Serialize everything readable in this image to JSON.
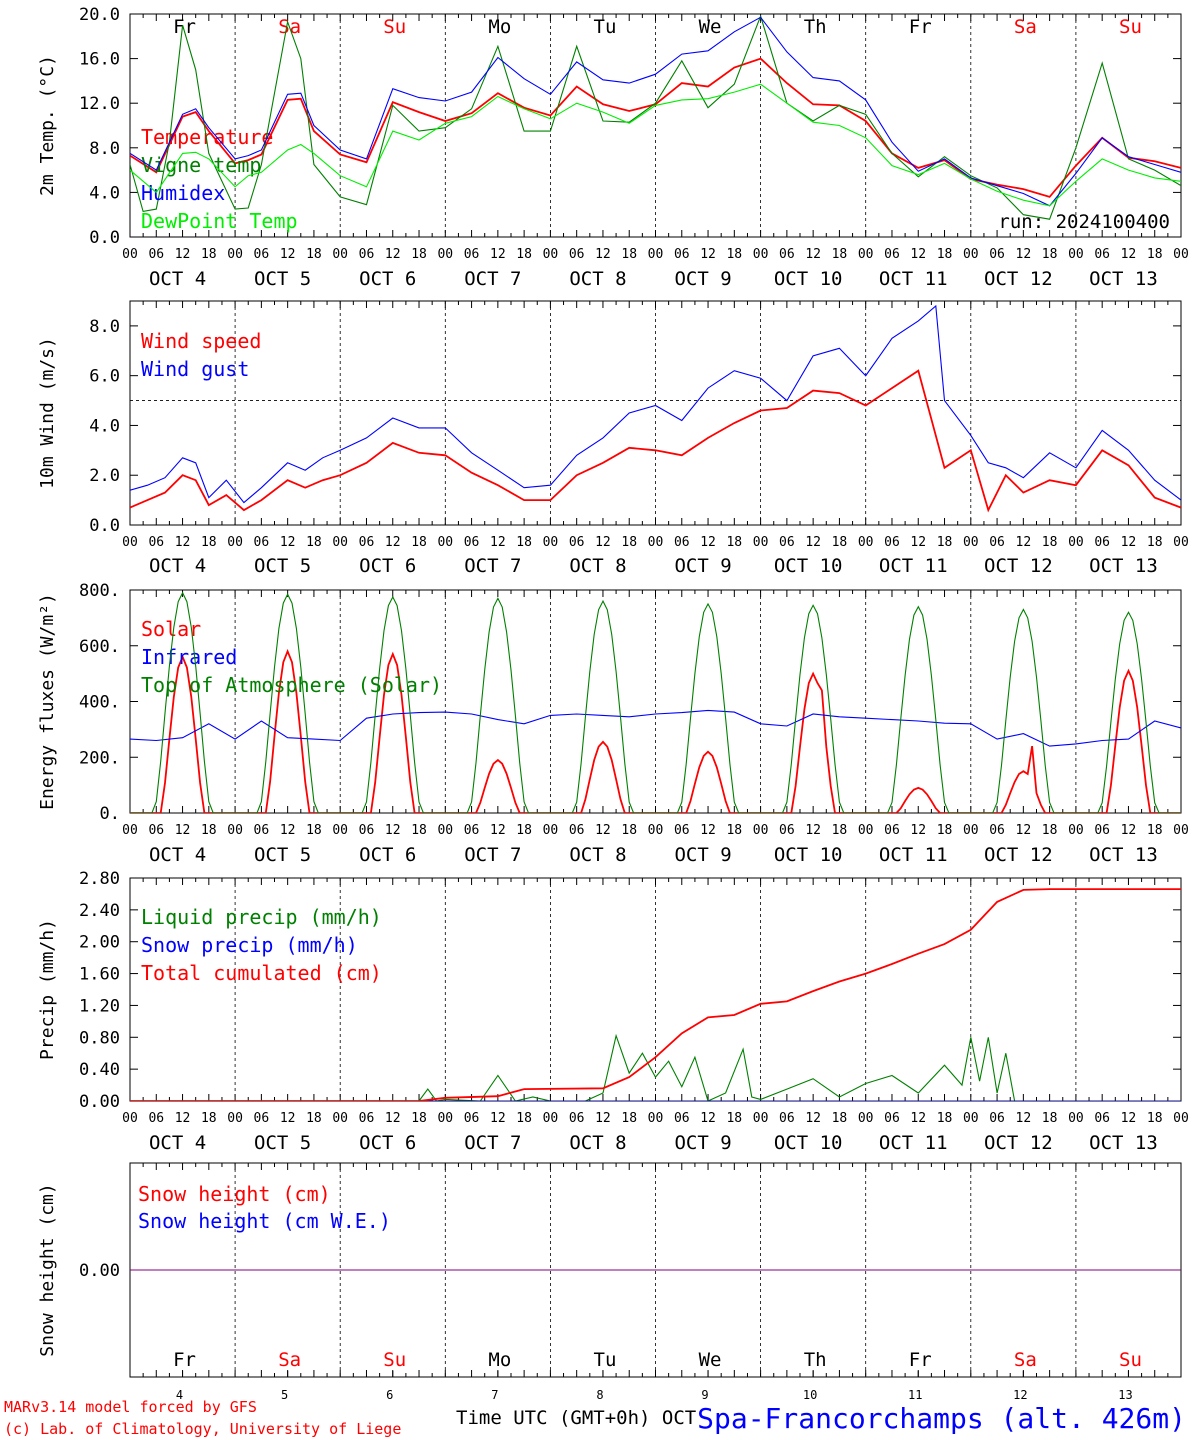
{
  "colors": {
    "red": "#ff0000",
    "blue": "#0000ff",
    "green": "#008000",
    "lime": "#00ee00",
    "purple": "#800080",
    "black": "#000000"
  },
  "days": {
    "labels": [
      "Fr",
      "Sa",
      "Su",
      "Mo",
      "Tu",
      "We",
      "Th",
      "Fr",
      "Sa",
      "Su"
    ],
    "weekend": [
      false,
      true,
      true,
      false,
      false,
      false,
      false,
      false,
      true,
      true
    ],
    "dates": [
      "OCT  4",
      "OCT  5",
      "OCT  6",
      "OCT  7",
      "OCT  8",
      "OCT  9",
      "OCT 10",
      "OCT 11",
      "OCT 12",
      "OCT 13"
    ],
    "numbers": [
      "4",
      "5",
      "6",
      "7",
      "8",
      "9",
      "10",
      "11",
      "12",
      "13"
    ],
    "hour_ticks": [
      "00",
      "06",
      "12",
      "18"
    ],
    "final_tick": "00"
  },
  "footer": {
    "model": "MARv3.14 model forced by GFS",
    "copyright": "(c) Lab. of Climatology, University of Liege",
    "xlabel": "Time UTC (GMT+0h) OCT",
    "station": "Spa-Francorchamps (alt. 426m)"
  },
  "chart_data": [
    {
      "id": "temp",
      "type": "line",
      "ylabel": "2m Temp. (°C)",
      "ylim": [
        0,
        20
      ],
      "yticks": [
        "0.0",
        "4.0",
        "8.0",
        "12.0",
        "16.0",
        "20.0"
      ],
      "annotation": "run: 2024100400",
      "x_unit": "hours since OCT 4 00 UTC",
      "series": [
        {
          "name": "Temperature",
          "color": "red",
          "x": [
            0,
            6,
            12,
            15,
            18,
            24,
            27,
            30,
            36,
            39,
            42,
            48,
            54,
            60,
            66,
            72,
            78,
            84,
            90,
            96,
            102,
            108,
            114,
            120,
            126,
            132,
            138,
            144,
            150,
            156,
            162,
            168,
            174,
            180,
            186,
            192,
            198,
            204,
            210,
            216,
            222,
            228,
            234,
            240
          ],
          "values": [
            7.3,
            5.8,
            10.8,
            11.2,
            9.5,
            6.6,
            6.9,
            7.4,
            12.3,
            12.4,
            9.5,
            7.4,
            6.7,
            12.1,
            11.2,
            10.4,
            11.1,
            12.9,
            11.6,
            10.9,
            13.5,
            11.9,
            11.3,
            11.9,
            13.8,
            13.5,
            15.2,
            16.0,
            13.8,
            11.9,
            11.8,
            10.4,
            7.5,
            6.2,
            6.9,
            5.2,
            4.7,
            4.3,
            3.6,
            6.4,
            8.9,
            7.1,
            6.8,
            6.2
          ]
        },
        {
          "name": "Vigne temp",
          "color": "green",
          "x": [
            0,
            3,
            6,
            9,
            12,
            15,
            18,
            24,
            27,
            30,
            36,
            39,
            42,
            48,
            54,
            60,
            66,
            72,
            78,
            84,
            90,
            96,
            102,
            108,
            114,
            120,
            126,
            132,
            138,
            144,
            150,
            156,
            162,
            168,
            174,
            180,
            186,
            192,
            198,
            204,
            210,
            216,
            222,
            228,
            234,
            240
          ],
          "values": [
            6.5,
            2.3,
            2.5,
            8.5,
            19.0,
            15.0,
            7.5,
            2.5,
            2.6,
            6.5,
            19.3,
            16.0,
            6.5,
            3.6,
            2.9,
            11.8,
            9.5,
            9.8,
            11.5,
            17.1,
            9.5,
            9.5,
            17.1,
            10.4,
            10.3,
            12.0,
            15.8,
            11.6,
            13.7,
            19.8,
            12.0,
            10.4,
            11.8,
            11.0,
            7.5,
            5.4,
            7.2,
            5.5,
            4.4,
            2.0,
            1.6,
            8.0,
            15.6,
            7.0,
            6.0,
            4.6
          ]
        },
        {
          "name": "Humidex",
          "color": "blue",
          "x": [
            0,
            6,
            12,
            15,
            18,
            24,
            27,
            30,
            36,
            39,
            42,
            48,
            54,
            60,
            66,
            72,
            78,
            84,
            90,
            96,
            102,
            108,
            114,
            120,
            126,
            132,
            138,
            144,
            150,
            156,
            162,
            168,
            174,
            180,
            186,
            192,
            198,
            204,
            210,
            216,
            222,
            228,
            234,
            240
          ],
          "values": [
            7.5,
            6.0,
            11.0,
            11.5,
            9.8,
            7.0,
            7.3,
            7.8,
            12.8,
            12.9,
            10.0,
            7.8,
            7.0,
            13.3,
            12.5,
            12.2,
            13.0,
            16.1,
            14.2,
            12.8,
            15.7,
            14.1,
            13.8,
            14.6,
            16.4,
            16.7,
            18.4,
            19.7,
            16.6,
            14.3,
            14.0,
            12.3,
            8.5,
            5.9,
            7.0,
            5.3,
            4.6,
            3.9,
            2.8,
            5.7,
            8.9,
            7.2,
            6.5,
            5.8
          ]
        },
        {
          "name": "DewPoint Temp",
          "color": "lime",
          "x": [
            0,
            6,
            12,
            15,
            18,
            24,
            27,
            30,
            36,
            39,
            42,
            48,
            54,
            60,
            66,
            72,
            78,
            84,
            90,
            96,
            102,
            108,
            114,
            120,
            126,
            132,
            138,
            144,
            150,
            156,
            162,
            168,
            174,
            180,
            186,
            192,
            198,
            204,
            210,
            216,
            222,
            228,
            234,
            240
          ],
          "values": [
            6.0,
            4.0,
            7.5,
            7.6,
            7.0,
            4.5,
            5.5,
            5.8,
            7.8,
            8.3,
            7.5,
            5.5,
            4.5,
            9.5,
            8.7,
            10.2,
            10.8,
            12.6,
            11.5,
            10.6,
            12.0,
            11.2,
            10.2,
            11.8,
            12.3,
            12.4,
            13.0,
            13.7,
            12.0,
            10.3,
            10.0,
            8.9,
            6.4,
            5.6,
            6.6,
            5.2,
            4.1,
            3.3,
            2.8,
            5.0,
            7.0,
            6.0,
            5.3,
            5.0
          ]
        }
      ]
    },
    {
      "id": "wind",
      "type": "line",
      "ylabel": "10m Wind (m/s)",
      "ylim": [
        0,
        9
      ],
      "yticks": [
        "0.0",
        "2.0",
        "4.0",
        "6.0",
        "8.0"
      ],
      "reference_line": 5,
      "x_unit": "hours since OCT 4 00 UTC",
      "series": [
        {
          "name": "Wind speed",
          "color": "red",
          "x": [
            0,
            4,
            8,
            12,
            15,
            18,
            22,
            26,
            30,
            36,
            40,
            44,
            48,
            54,
            60,
            66,
            72,
            78,
            84,
            90,
            96,
            102,
            108,
            114,
            120,
            126,
            132,
            138,
            144,
            150,
            156,
            162,
            168,
            174,
            180,
            186,
            192,
            196,
            200,
            204,
            210,
            216,
            222,
            228,
            234,
            240
          ],
          "values": [
            0.7,
            1.0,
            1.3,
            2.0,
            1.8,
            0.8,
            1.2,
            0.6,
            1.0,
            1.8,
            1.5,
            1.8,
            2.0,
            2.5,
            3.3,
            2.9,
            2.8,
            2.1,
            1.6,
            1.0,
            1.0,
            2.0,
            2.5,
            3.1,
            3.0,
            2.8,
            3.5,
            4.1,
            4.6,
            4.7,
            5.4,
            5.3,
            4.8,
            5.5,
            6.2,
            2.3,
            3.0,
            0.6,
            2.0,
            1.3,
            1.8,
            1.6,
            3.0,
            2.4,
            1.1,
            0.7
          ]
        },
        {
          "name": "Wind gust",
          "color": "blue",
          "x": [
            0,
            4,
            8,
            12,
            15,
            18,
            22,
            26,
            30,
            36,
            40,
            44,
            48,
            54,
            60,
            66,
            72,
            78,
            84,
            90,
            96,
            102,
            108,
            114,
            120,
            126,
            132,
            138,
            144,
            150,
            156,
            162,
            168,
            174,
            180,
            184,
            186,
            192,
            196,
            200,
            204,
            210,
            216,
            222,
            228,
            234,
            240
          ],
          "values": [
            1.4,
            1.6,
            1.9,
            2.7,
            2.5,
            1.1,
            1.8,
            0.9,
            1.5,
            2.5,
            2.2,
            2.7,
            3.0,
            3.5,
            4.3,
            3.9,
            3.9,
            2.9,
            2.2,
            1.5,
            1.6,
            2.8,
            3.5,
            4.5,
            4.8,
            4.2,
            5.5,
            6.2,
            5.9,
            5.0,
            6.8,
            7.1,
            6.0,
            7.5,
            8.2,
            8.8,
            5.0,
            3.6,
            2.5,
            2.3,
            1.9,
            2.9,
            2.3,
            3.8,
            3.0,
            1.8,
            1.0
          ]
        }
      ]
    },
    {
      "id": "flux",
      "type": "line",
      "ylabel": "Energy fluxes (W/m²)",
      "ylim": [
        0,
        800
      ],
      "yticks": [
        "0.",
        "200.",
        "400.",
        "600.",
        "800."
      ],
      "x_unit": "hours since OCT 4 00 UTC",
      "series": [
        {
          "name": "Solar",
          "color": "red",
          "peaks": [
            560,
            580,
            570,
            190,
            255,
            220,
            500,
            90,
            150,
            510
          ],
          "secondary_peaks": [
            0,
            0,
            0,
            0,
            0,
            0,
            440,
            0,
            240,
            0
          ]
        },
        {
          "name": "Infrared",
          "color": "blue",
          "x": [
            0,
            6,
            12,
            18,
            24,
            30,
            36,
            42,
            48,
            54,
            60,
            66,
            72,
            78,
            84,
            90,
            96,
            102,
            108,
            114,
            120,
            126,
            132,
            138,
            144,
            150,
            156,
            162,
            168,
            174,
            180,
            186,
            192,
            198,
            204,
            210,
            216,
            222,
            228,
            234,
            240
          ],
          "values": [
            265,
            260,
            270,
            320,
            265,
            330,
            270,
            265,
            260,
            340,
            355,
            360,
            362,
            355,
            335,
            320,
            350,
            355,
            350,
            345,
            355,
            360,
            368,
            362,
            320,
            312,
            355,
            345,
            340,
            335,
            330,
            322,
            320,
            265,
            285,
            240,
            248,
            260,
            265,
            330,
            305
          ]
        },
        {
          "name": "Top of Atmosphere (Solar)",
          "color": "green",
          "peaks": [
            790,
            785,
            775,
            770,
            760,
            750,
            745,
            740,
            730,
            720
          ]
        }
      ]
    },
    {
      "id": "precip",
      "type": "line",
      "ylabel": "Precip (mm/h)",
      "ylim": [
        0,
        2.8
      ],
      "yticks": [
        "0.00",
        "0.40",
        "0.80",
        "1.20",
        "1.60",
        "2.00",
        "2.40",
        "2.80"
      ],
      "x_unit": "hours since OCT 4 00 UTC",
      "series": [
        {
          "name": "Liquid precip (mm/h)",
          "color": "green",
          "x": [
            0,
            66,
            68,
            70,
            72,
            80,
            84,
            88,
            92,
            96,
            104,
            108,
            111,
            114,
            117,
            120,
            123,
            126,
            129,
            132,
            136,
            140,
            142,
            144,
            150,
            156,
            162,
            168,
            174,
            180,
            186,
            190,
            192,
            194,
            196,
            198,
            200,
            202,
            204,
            240
          ],
          "values": [
            0,
            0,
            0.15,
            0,
            0.02,
            0,
            0.32,
            0,
            0.05,
            0,
            0,
            0.1,
            0.82,
            0.35,
            0.6,
            0.3,
            0.5,
            0.18,
            0.55,
            0,
            0.1,
            0.65,
            0.05,
            0.02,
            0.15,
            0.28,
            0.05,
            0.22,
            0.32,
            0.1,
            0.45,
            0.2,
            0.8,
            0.25,
            0.8,
            0.1,
            0.6,
            0,
            0,
            0
          ]
        },
        {
          "name": "Snow precip (mm/h)",
          "color": "blue",
          "x": [
            0,
            240
          ],
          "values": [
            0,
            0
          ]
        },
        {
          "name": "Total cumulated (cm)",
          "color": "red",
          "x": [
            0,
            66,
            72,
            84,
            90,
            108,
            114,
            120,
            126,
            132,
            138,
            144,
            150,
            156,
            162,
            168,
            174,
            180,
            186,
            192,
            198,
            204,
            210,
            240
          ],
          "values": [
            0,
            0,
            0.04,
            0.06,
            0.15,
            0.16,
            0.3,
            0.55,
            0.85,
            1.05,
            1.08,
            1.22,
            1.25,
            1.38,
            1.5,
            1.6,
            1.72,
            1.85,
            1.97,
            2.15,
            2.5,
            2.65,
            2.66,
            2.66
          ]
        }
      ]
    },
    {
      "id": "snow",
      "type": "line",
      "ylabel": "Snow height (cm)",
      "yticks": [
        "0.00"
      ],
      "x_unit": "hours since OCT 4 00 UTC",
      "series": [
        {
          "name": "Snow height (cm)",
          "color": "red",
          "x": [
            0,
            240
          ],
          "values": [
            0,
            0
          ]
        },
        {
          "name": "Snow height (cm W.E.)",
          "color": "blue",
          "x": [
            0,
            240
          ],
          "values": [
            0,
            0
          ]
        }
      ]
    }
  ]
}
